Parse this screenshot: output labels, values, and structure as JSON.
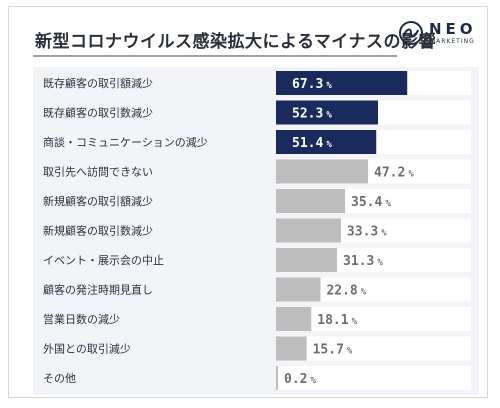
{
  "header": {
    "title": "新型コロナウイルス感染拡大によるマイナスの影響"
  },
  "logo": {
    "word": "NEO",
    "sub": "MARKETING"
  },
  "colors": {
    "highlight": "#1b2a5c",
    "normal": "#bdbdbd",
    "track": "#ffffff",
    "highlight_text": "#ffffff",
    "normal_text": "#6f6f6f"
  },
  "chart_data": {
    "type": "bar",
    "orientation": "horizontal",
    "unit": "%",
    "categories": [
      "既存顧客の取引額減少",
      "既存顧客の取引数減少",
      "商談・コミュニケーションの減少",
      "取引先へ訪問できない",
      "新規顧客の取引額減少",
      "新規顧客の取引数減少",
      "イベント・展示会の中止",
      "顧客の発注時期見直し",
      "営業日数の減少",
      "外国との取引減少",
      "その他"
    ],
    "values": [
      67.3,
      52.3,
      51.4,
      47.2,
      35.4,
      33.3,
      31.3,
      22.8,
      18.1,
      15.7,
      0.2
    ],
    "value_labels": [
      "67.3",
      "52.3",
      "51.4",
      "47.2",
      "35.4",
      "33.3",
      "31.3",
      "22.8",
      "18.1",
      "15.7",
      "0.2"
    ],
    "highlighted": [
      true,
      true,
      true,
      false,
      false,
      false,
      false,
      false,
      false,
      false,
      false
    ],
    "xlim": [
      0,
      100
    ]
  }
}
